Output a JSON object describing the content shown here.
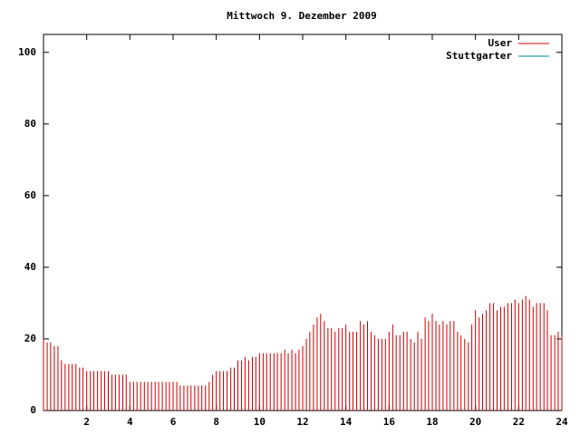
{
  "chart_data": {
    "type": "impulse",
    "title": "Mittwoch 9. Dezember 2009",
    "xlim": [
      0,
      24
    ],
    "xticks": [
      2,
      4,
      6,
      8,
      10,
      12,
      14,
      16,
      18,
      20,
      22,
      24
    ],
    "ylim": [
      0,
      105
    ],
    "yticks": [
      0,
      20,
      40,
      60,
      80,
      100
    ],
    "legend": "top-right",
    "x": [
      0,
      0.17,
      0.33,
      0.5,
      0.67,
      0.83,
      1,
      1.17,
      1.33,
      1.5,
      1.67,
      1.83,
      2,
      2.17,
      2.33,
      2.5,
      2.67,
      2.83,
      3,
      3.17,
      3.33,
      3.5,
      3.67,
      3.83,
      4,
      4.17,
      4.33,
      4.5,
      4.67,
      4.83,
      5,
      5.17,
      5.33,
      5.5,
      5.67,
      5.83,
      6,
      6.17,
      6.33,
      6.5,
      6.67,
      6.83,
      7,
      7.17,
      7.33,
      7.5,
      7.67,
      7.83,
      8,
      8.17,
      8.33,
      8.5,
      8.67,
      8.83,
      9,
      9.17,
      9.33,
      9.5,
      9.67,
      9.83,
      10,
      10.17,
      10.33,
      10.5,
      10.67,
      10.83,
      11,
      11.17,
      11.33,
      11.5,
      11.67,
      11.83,
      12,
      12.17,
      12.33,
      12.5,
      12.67,
      12.83,
      13,
      13.17,
      13.33,
      13.5,
      13.67,
      13.83,
      14,
      14.17,
      14.33,
      14.5,
      14.67,
      14.83,
      15,
      15.17,
      15.33,
      15.5,
      15.67,
      15.83,
      16,
      16.17,
      16.33,
      16.5,
      16.67,
      16.83,
      17,
      17.17,
      17.33,
      17.5,
      17.67,
      17.83,
      18,
      18.17,
      18.33,
      18.5,
      18.67,
      18.83,
      19,
      19.17,
      19.33,
      19.5,
      19.67,
      19.83,
      20,
      20.17,
      20.33,
      20.5,
      20.67,
      20.83,
      21,
      21.17,
      21.33,
      21.5,
      21.67,
      21.83,
      22,
      22.17,
      22.33,
      22.5,
      22.67,
      22.83,
      23,
      23.17,
      23.33,
      23.5,
      23.67,
      23.83,
      24
    ],
    "series": [
      {
        "name": "User",
        "color": "#cc0000",
        "values": [
          20,
          19,
          19,
          18,
          18,
          14,
          13,
          13,
          13,
          13,
          12,
          12,
          11,
          11,
          11,
          11,
          11,
          11,
          11,
          10,
          10,
          10,
          10,
          10,
          8,
          8,
          8,
          8,
          8,
          8,
          8,
          8,
          8,
          8,
          8,
          8,
          8,
          8,
          7,
          7,
          7,
          7,
          7,
          7,
          7,
          7,
          8,
          10,
          11,
          11,
          11,
          11,
          12,
          12,
          14,
          14,
          15,
          14,
          15,
          15,
          16,
          16,
          16,
          16,
          16,
          16,
          16,
          17,
          16,
          17,
          16,
          17,
          18,
          20,
          22,
          24,
          26,
          27,
          25,
          23,
          23,
          22,
          23,
          23,
          24,
          22,
          22,
          22,
          25,
          24,
          25,
          22,
          21,
          20,
          20,
          20,
          22,
          24,
          21,
          21,
          22,
          22,
          20,
          19,
          22,
          20,
          26,
          25,
          27,
          25,
          24,
          25,
          24,
          25,
          25,
          22,
          21,
          20,
          19,
          24,
          28,
          26,
          27,
          28,
          30,
          30,
          28,
          29,
          29,
          30,
          30,
          31,
          30,
          31,
          32,
          31,
          29,
          30,
          30,
          30,
          28,
          21,
          21,
          22,
          21
        ]
      },
      {
        "name": "Stuttgarter",
        "color": "#008b8b",
        "values": [
          null,
          null,
          null,
          null,
          null,
          null,
          null,
          null,
          null,
          null,
          null,
          null,
          null,
          null,
          null,
          null,
          null,
          null,
          null,
          null,
          null,
          null,
          null,
          null,
          null,
          null,
          null,
          null,
          null,
          null,
          null,
          null,
          null,
          null,
          null,
          null,
          null,
          null,
          null,
          null,
          null,
          null,
          null,
          null,
          null,
          null,
          null,
          null,
          null,
          null,
          null,
          null,
          null,
          null,
          null,
          null,
          null,
          null,
          null,
          null,
          null,
          null,
          null,
          null,
          null,
          null,
          null,
          null,
          null,
          null,
          null,
          null,
          null,
          null,
          null,
          null,
          null,
          null,
          null,
          null,
          null,
          null,
          null,
          null,
          null,
          null,
          null,
          null,
          null,
          null,
          null,
          null,
          null,
          null,
          null,
          null,
          null,
          null,
          null,
          null,
          null,
          null,
          null,
          null,
          null,
          null,
          null,
          null,
          null,
          null,
          null,
          null,
          null,
          null,
          null,
          null,
          null,
          null,
          null,
          null,
          null,
          null,
          null,
          null,
          null,
          null,
          null,
          null,
          null,
          null,
          null,
          null,
          null,
          null,
          null,
          null,
          null,
          null,
          null,
          null,
          null,
          null,
          null,
          null,
          null
        ]
      }
    ]
  }
}
